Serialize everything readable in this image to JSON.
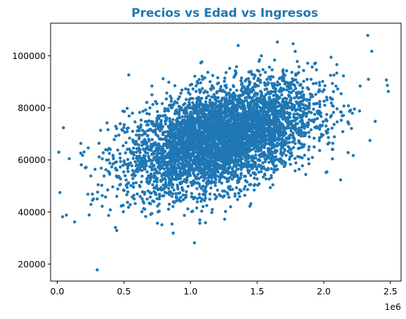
{
  "chart_data": {
    "type": "scatter",
    "title": "Precios vs Edad vs Ingresos",
    "title_color": "#2077b4",
    "point_color": "#1f77b4",
    "xlabel": "",
    "ylabel": "",
    "x_offset_label": "1e6",
    "xlim": [
      -50000,
      2580000
    ],
    "ylim": [
      13500,
      112500
    ],
    "x_ticks": [
      0,
      500000,
      1000000,
      1500000,
      2000000,
      2500000
    ],
    "x_tick_labels": [
      "0.0",
      "0.5",
      "1.0",
      "1.5",
      "2.0",
      "2.5"
    ],
    "y_ticks": [
      20000,
      40000,
      60000,
      80000,
      100000
    ],
    "y_tick_labels": [
      "20000",
      "40000",
      "60000",
      "80000",
      "100000"
    ],
    "grid": false,
    "points_summary": {
      "count": 5000,
      "x_mean": 1230000,
      "x_sd": 350000,
      "y_mean": 68600,
      "y_sd": 10500,
      "correlation": 0.45
    },
    "notable_points": [
      {
        "x": 300000,
        "y": 17800
      },
      {
        "x": 2330000,
        "y": 107800
      },
      {
        "x": 2470000,
        "y": 90700
      },
      {
        "x": 20000,
        "y": 47500
      },
      {
        "x": 40000,
        "y": 38200
      },
      {
        "x": 90000,
        "y": 60500
      },
      {
        "x": 1770000,
        "y": 104600
      },
      {
        "x": 1070000,
        "y": 35700
      },
      {
        "x": 130000,
        "y": 36200
      },
      {
        "x": 2360000,
        "y": 101700
      }
    ]
  }
}
